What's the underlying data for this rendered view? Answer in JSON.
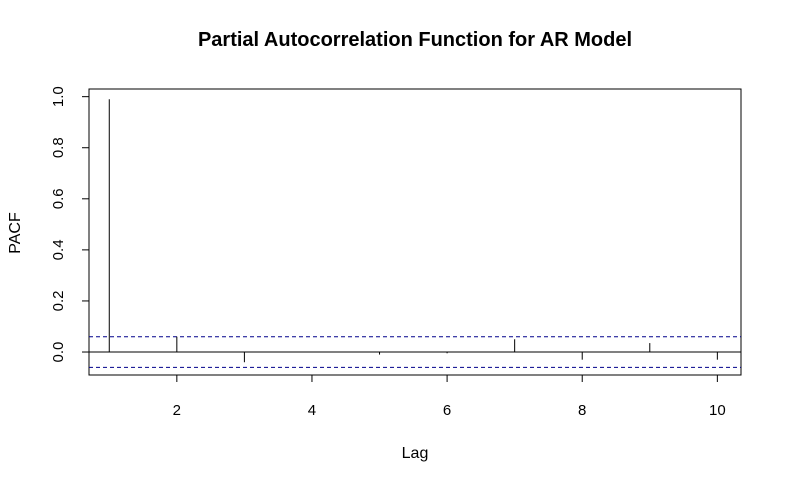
{
  "chart_data": {
    "type": "bar",
    "title": "Partial Autocorrelation Function for AR Model",
    "xlabel": "Lag",
    "ylabel": "PACF",
    "xlim": [
      0.7,
      10.35
    ],
    "ylim": [
      -0.09,
      1.03
    ],
    "xticks": [
      2,
      4,
      6,
      8,
      10
    ],
    "yticks": [
      0.0,
      0.2,
      0.4,
      0.6,
      0.8,
      1.0
    ],
    "ytick_labels": [
      "0.0",
      "0.2",
      "0.4",
      "0.6",
      "0.8",
      "1.0"
    ],
    "x": [
      1,
      2,
      3,
      4,
      5,
      6,
      7,
      8,
      9,
      10
    ],
    "values": [
      0.99,
      0.06,
      -0.04,
      0.0,
      -0.01,
      -0.005,
      0.05,
      -0.03,
      0.035,
      -0.03
    ],
    "confidence_bound": 0.06,
    "confidence_color": "#00008b",
    "grid": false,
    "legend": "none"
  }
}
